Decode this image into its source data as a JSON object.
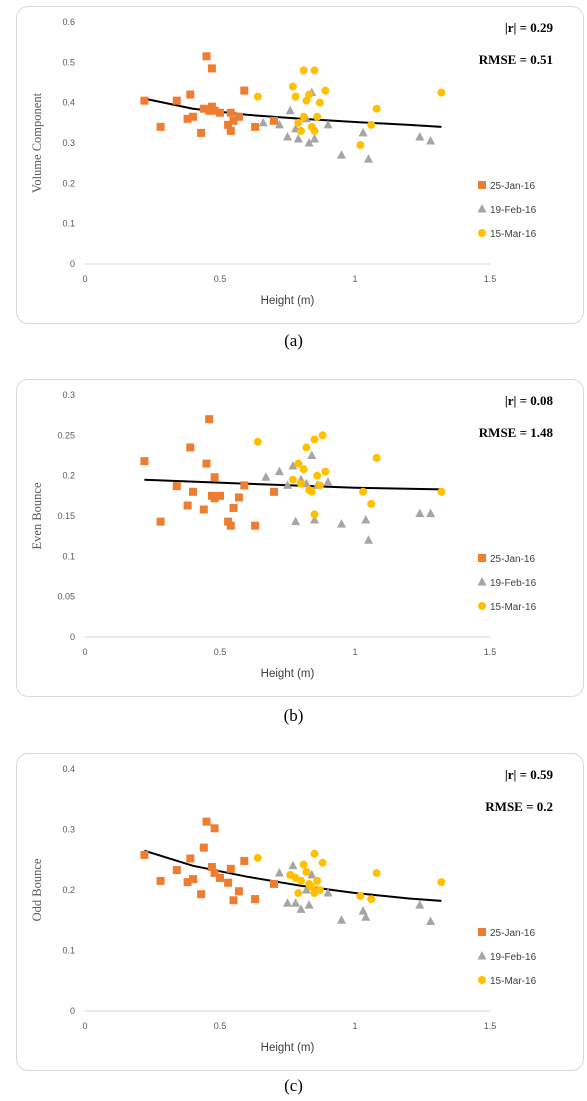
{
  "chart_data": [
    {
      "type": "scatter",
      "panel_label": "(a)",
      "ylabel": "Volume Component",
      "xlabel": "Height (m)",
      "xlim": [
        0,
        1.5
      ],
      "ylim": [
        0,
        0.6
      ],
      "xticks": [
        "0",
        "0.5",
        "1",
        "1.5"
      ],
      "yticks": [
        "0",
        "0.1",
        "0.2",
        "0.3",
        "0.4",
        "0.5",
        "0.6"
      ],
      "grid": false,
      "legend_position": "right",
      "stats": [
        "|r| = 0.29",
        "RMSE = 0.51"
      ],
      "trendline": {
        "x": [
          0.22,
          0.4,
          0.6,
          0.8,
          1.0,
          1.2,
          1.32
        ],
        "y": [
          0.41,
          0.385,
          0.37,
          0.36,
          0.352,
          0.345,
          0.34
        ]
      },
      "series": [
        {
          "name": "25-Jan-16",
          "marker": "square",
          "color": "#ed7d31",
          "x": [
            0.22,
            0.28,
            0.34,
            0.38,
            0.39,
            0.4,
            0.43,
            0.44,
            0.45,
            0.46,
            0.47,
            0.47,
            0.48,
            0.5,
            0.53,
            0.54,
            0.54,
            0.55,
            0.57,
            0.59,
            0.63,
            0.7
          ],
          "y": [
            0.405,
            0.34,
            0.405,
            0.36,
            0.42,
            0.365,
            0.325,
            0.385,
            0.515,
            0.38,
            0.39,
            0.485,
            0.38,
            0.375,
            0.345,
            0.33,
            0.375,
            0.355,
            0.365,
            0.43,
            0.34,
            0.355
          ]
        },
        {
          "name": "19-Feb-16",
          "marker": "triangle",
          "color": "#a5a5a5",
          "x": [
            0.66,
            0.72,
            0.75,
            0.76,
            0.78,
            0.79,
            0.82,
            0.83,
            0.84,
            0.85,
            0.9,
            0.95,
            1.03,
            1.05,
            1.24,
            1.28
          ],
          "y": [
            0.35,
            0.345,
            0.315,
            0.38,
            0.335,
            0.31,
            0.36,
            0.3,
            0.425,
            0.31,
            0.345,
            0.27,
            0.325,
            0.26,
            0.315,
            0.305
          ]
        },
        {
          "name": "15-Mar-16",
          "marker": "circle",
          "color": "#ffc000",
          "x": [
            0.64,
            0.77,
            0.78,
            0.79,
            0.8,
            0.81,
            0.81,
            0.82,
            0.83,
            0.84,
            0.85,
            0.85,
            0.86,
            0.87,
            0.89,
            1.02,
            1.06,
            1.08,
            1.32
          ],
          "y": [
            0.415,
            0.44,
            0.415,
            0.35,
            0.33,
            0.365,
            0.48,
            0.405,
            0.42,
            0.34,
            0.48,
            0.33,
            0.365,
            0.4,
            0.43,
            0.295,
            0.345,
            0.385,
            0.425
          ]
        }
      ]
    },
    {
      "type": "scatter",
      "panel_label": "(b)",
      "ylabel": "Even Bounce",
      "xlabel": "Height (m)",
      "xlim": [
        0,
        1.5
      ],
      "ylim": [
        0,
        0.3
      ],
      "xticks": [
        "0",
        "0.5",
        "1",
        "1.5"
      ],
      "yticks": [
        "0",
        "0.05",
        "0.1",
        "0.15",
        "0.2",
        "0.25",
        "0.3"
      ],
      "grid": false,
      "legend_position": "right",
      "stats": [
        "|r| = 0.08",
        "RMSE = 1.48"
      ],
      "trendline": {
        "x": [
          0.22,
          0.6,
          1.0,
          1.32
        ],
        "y": [
          0.195,
          0.19,
          0.185,
          0.183
        ]
      },
      "series": [
        {
          "name": "25-Jan-16",
          "marker": "square",
          "color": "#ed7d31",
          "x": [
            0.22,
            0.28,
            0.34,
            0.38,
            0.39,
            0.4,
            0.44,
            0.45,
            0.46,
            0.47,
            0.48,
            0.48,
            0.5,
            0.53,
            0.54,
            0.55,
            0.57,
            0.59,
            0.63,
            0.7
          ],
          "y": [
            0.218,
            0.143,
            0.187,
            0.163,
            0.235,
            0.18,
            0.158,
            0.215,
            0.27,
            0.175,
            0.198,
            0.172,
            0.175,
            0.143,
            0.138,
            0.16,
            0.173,
            0.188,
            0.138,
            0.18
          ]
        },
        {
          "name": "19-Feb-16",
          "marker": "triangle",
          "color": "#a5a5a5",
          "x": [
            0.67,
            0.72,
            0.75,
            0.77,
            0.78,
            0.8,
            0.82,
            0.84,
            0.85,
            0.86,
            0.9,
            0.95,
            1.04,
            1.05,
            1.24,
            1.28
          ],
          "y": [
            0.198,
            0.205,
            0.188,
            0.212,
            0.143,
            0.195,
            0.19,
            0.225,
            0.145,
            0.188,
            0.192,
            0.14,
            0.145,
            0.12,
            0.153,
            0.153
          ]
        },
        {
          "name": "15-Mar-16",
          "marker": "circle",
          "color": "#ffc000",
          "x": [
            0.64,
            0.77,
            0.79,
            0.8,
            0.81,
            0.82,
            0.83,
            0.84,
            0.85,
            0.85,
            0.86,
            0.87,
            0.88,
            0.89,
            1.03,
            1.06,
            1.08,
            1.32
          ],
          "y": [
            0.242,
            0.195,
            0.215,
            0.19,
            0.208,
            0.235,
            0.182,
            0.18,
            0.245,
            0.152,
            0.2,
            0.188,
            0.25,
            0.205,
            0.18,
            0.165,
            0.222,
            0.18
          ]
        }
      ]
    },
    {
      "type": "scatter",
      "panel_label": "(c)",
      "ylabel": "Odd Bounce",
      "xlabel": "Height (m)",
      "xlim": [
        0,
        1.5
      ],
      "ylim": [
        0,
        0.4
      ],
      "xticks": [
        "0",
        "0.5",
        "1",
        "1.5"
      ],
      "yticks": [
        "0",
        "0.1",
        "0.2",
        "0.3",
        "0.4"
      ],
      "grid": false,
      "legend_position": "right",
      "stats": [
        "|r| = 0.59",
        "RMSE = 0.2"
      ],
      "trendline": {
        "x": [
          0.22,
          0.4,
          0.6,
          0.8,
          1.0,
          1.2,
          1.32
        ],
        "y": [
          0.265,
          0.24,
          0.222,
          0.207,
          0.195,
          0.186,
          0.182
        ]
      },
      "series": [
        {
          "name": "25-Jan-16",
          "marker": "square",
          "color": "#ed7d31",
          "x": [
            0.22,
            0.28,
            0.34,
            0.38,
            0.39,
            0.4,
            0.43,
            0.44,
            0.45,
            0.47,
            0.48,
            0.48,
            0.5,
            0.53,
            0.54,
            0.55,
            0.57,
            0.59,
            0.63,
            0.7
          ],
          "y": [
            0.258,
            0.215,
            0.233,
            0.213,
            0.252,
            0.218,
            0.193,
            0.27,
            0.313,
            0.238,
            0.302,
            0.228,
            0.22,
            0.212,
            0.235,
            0.183,
            0.198,
            0.248,
            0.185,
            0.21
          ]
        },
        {
          "name": "19-Feb-16",
          "marker": "triangle",
          "color": "#a5a5a5",
          "x": [
            0.72,
            0.75,
            0.77,
            0.78,
            0.8,
            0.82,
            0.83,
            0.84,
            0.86,
            0.9,
            0.95,
            1.03,
            1.04,
            1.24,
            1.28
          ],
          "y": [
            0.228,
            0.178,
            0.24,
            0.178,
            0.168,
            0.2,
            0.175,
            0.225,
            0.2,
            0.195,
            0.15,
            0.165,
            0.155,
            0.175,
            0.148
          ]
        },
        {
          "name": "15-Mar-16",
          "marker": "circle",
          "color": "#ffc000",
          "x": [
            0.64,
            0.76,
            0.78,
            0.79,
            0.8,
            0.81,
            0.82,
            0.83,
            0.84,
            0.85,
            0.85,
            0.86,
            0.87,
            0.88,
            1.02,
            1.06,
            1.08,
            1.32
          ],
          "y": [
            0.253,
            0.225,
            0.22,
            0.195,
            0.215,
            0.242,
            0.23,
            0.21,
            0.205,
            0.26,
            0.195,
            0.215,
            0.2,
            0.245,
            0.19,
            0.185,
            0.228,
            0.213
          ]
        }
      ]
    }
  ]
}
